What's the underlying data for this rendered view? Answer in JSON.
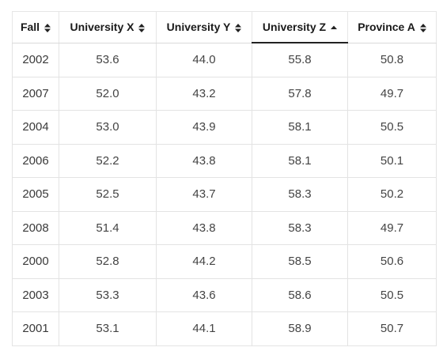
{
  "table": {
    "columns": [
      {
        "label": "Fall",
        "sort": "none"
      },
      {
        "label": "University X",
        "sort": "none"
      },
      {
        "label": "University Y",
        "sort": "none"
      },
      {
        "label": "University Z",
        "sort": "asc"
      },
      {
        "label": "Province A",
        "sort": "none"
      }
    ],
    "rows": [
      [
        "2002",
        "53.6",
        "44.0",
        "55.8",
        "50.8"
      ],
      [
        "2007",
        "52.0",
        "43.2",
        "57.8",
        "49.7"
      ],
      [
        "2004",
        "53.0",
        "43.9",
        "58.1",
        "50.5"
      ],
      [
        "2006",
        "52.2",
        "43.8",
        "58.1",
        "50.1"
      ],
      [
        "2005",
        "52.5",
        "43.7",
        "58.3",
        "50.2"
      ],
      [
        "2008",
        "51.4",
        "43.8",
        "58.3",
        "49.7"
      ],
      [
        "2000",
        "52.8",
        "44.2",
        "58.5",
        "50.6"
      ],
      [
        "2003",
        "53.3",
        "43.6",
        "58.6",
        "50.5"
      ],
      [
        "2001",
        "53.1",
        "44.1",
        "58.9",
        "50.7"
      ]
    ]
  },
  "icons": {
    "unsorted": "sort-both-icon",
    "ascending": "sort-asc-icon"
  },
  "colors": {
    "active_header_underline": "#222222",
    "border": "#e3e3e3"
  }
}
